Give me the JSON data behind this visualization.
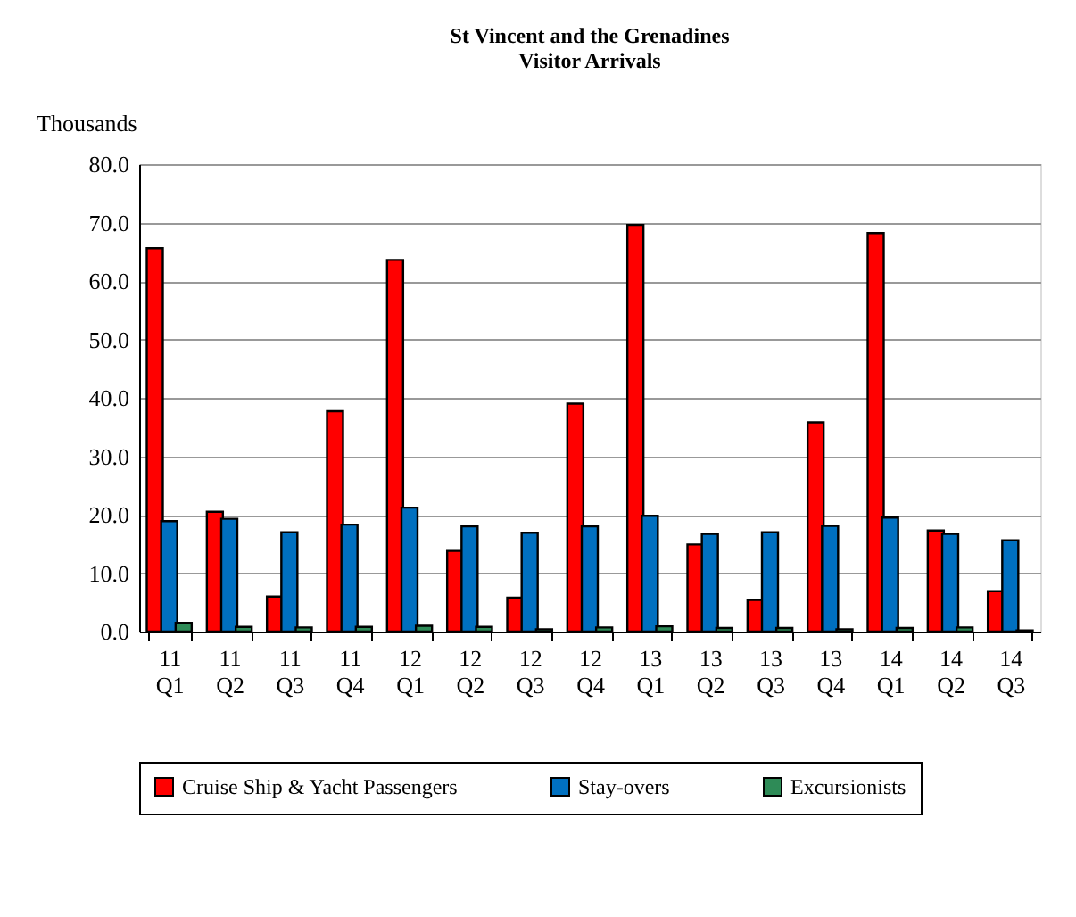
{
  "chart_data": {
    "type": "bar",
    "title": "St Vincent and the Grenadines\nVisitor Arrivals",
    "ylabel": "Thousands",
    "categories": [
      "11 Q1",
      "11 Q2",
      "11 Q3",
      "11 Q4",
      "12 Q1",
      "12 Q2",
      "12 Q3",
      "12 Q4",
      "13 Q1",
      "13 Q2",
      "13 Q3",
      "13 Q4",
      "14 Q1",
      "14 Q2",
      "14 Q3"
    ],
    "series": [
      {
        "name": "Cruise Ship & Yacht Passengers",
        "color": "#ff0000",
        "values": [
          65.6,
          20.5,
          6.0,
          37.7,
          63.6,
          13.8,
          5.8,
          39.0,
          69.6,
          14.9,
          5.4,
          35.8,
          68.2,
          17.3,
          6.9
        ]
      },
      {
        "name": "Stay-overs",
        "color": "#0070c0",
        "values": [
          18.9,
          19.3,
          17.0,
          18.3,
          21.2,
          18.0,
          16.9,
          18.0,
          19.8,
          16.7,
          17.0,
          18.1,
          19.5,
          16.7,
          15.6
        ]
      },
      {
        "name": "Excursionists",
        "color": "#2e8b57",
        "values": [
          1.5,
          0.8,
          0.7,
          0.8,
          1.0,
          0.8,
          0.4,
          0.7,
          0.9,
          0.6,
          0.6,
          0.4,
          0.6,
          0.7,
          0.2
        ]
      }
    ],
    "ylim": [
      0,
      80
    ],
    "yticks": [
      {
        "value": 0,
        "label": "0.0"
      },
      {
        "value": 10,
        "label": "10.0"
      },
      {
        "value": 20,
        "label": "20.0"
      },
      {
        "value": 30,
        "label": "30.0"
      },
      {
        "value": 40,
        "label": "40.0"
      },
      {
        "value": 50,
        "label": "50.0"
      },
      {
        "value": 60,
        "label": "60.0"
      },
      {
        "value": 70,
        "label": "70.0"
      },
      {
        "value": 80,
        "label": "80.0"
      }
    ],
    "grid": "y",
    "legend": "bottom"
  }
}
